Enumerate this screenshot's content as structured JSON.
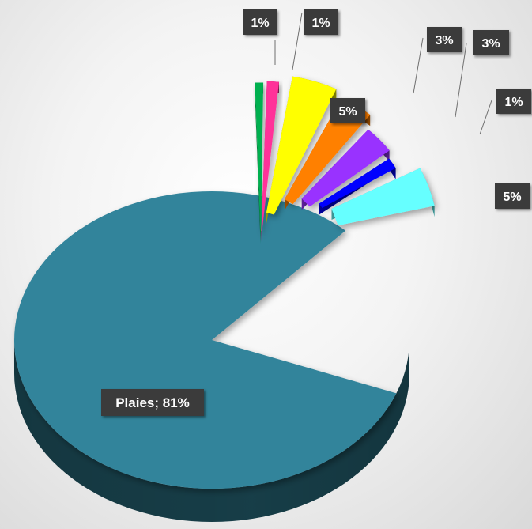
{
  "chart_data": {
    "type": "pie",
    "title": "",
    "slices": [
      {
        "label": "Plaies; 81%",
        "value": 81,
        "color": "#31849B"
      },
      {
        "label": "1%",
        "value": 1,
        "color": "#00B050"
      },
      {
        "label": "1%",
        "value": 1,
        "color": "#FF3399"
      },
      {
        "label": "5%",
        "value": 5,
        "color": "#FFFF00"
      },
      {
        "label": "3%",
        "value": 3,
        "color": "#FF8000"
      },
      {
        "label": "3%",
        "value": 3,
        "color": "#9933FF"
      },
      {
        "label": "1%",
        "value": 1,
        "color": "#0000FF"
      },
      {
        "label": "5%",
        "value": 5,
        "color": "#66FFFF"
      }
    ],
    "label_style": {
      "background": "#3a3a3a",
      "text_color": "#ffffff"
    },
    "exploded_group": "bar-of-pie style secondary slices (top-right)"
  }
}
